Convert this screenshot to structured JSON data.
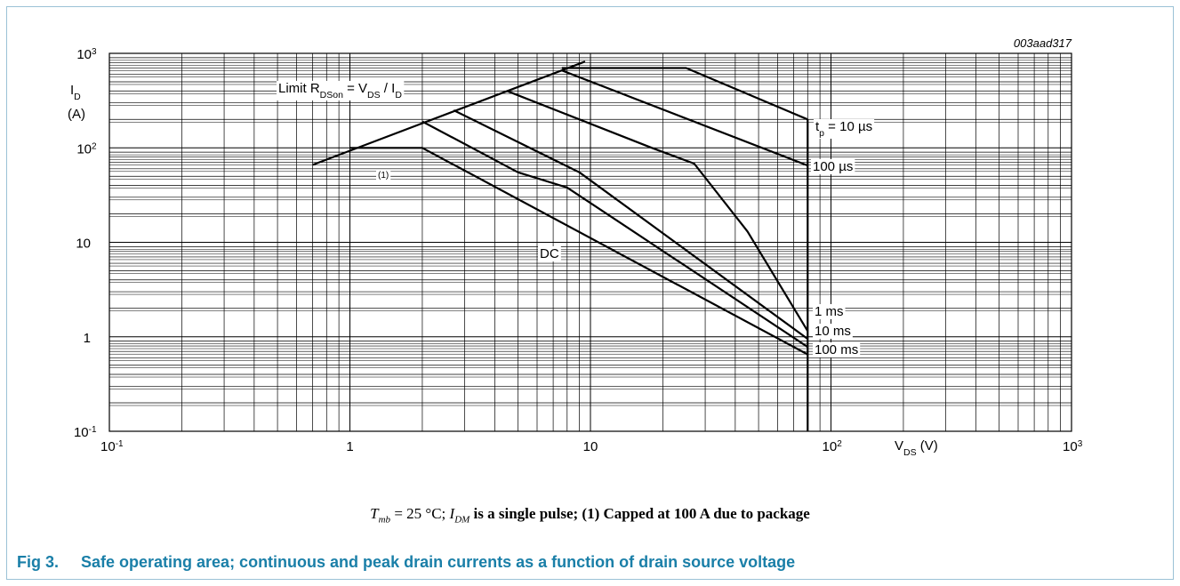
{
  "figure_id": "003aad317",
  "note": {
    "tmb_symbol": "T",
    "tmb_sub": "mb",
    "text_a": " = 25 °C; ",
    "idm_symbol": "I",
    "idm_sub": "DM",
    "text_b": " is a single pulse; (1) Capped at 100 A due to package"
  },
  "caption": {
    "number": "Fig 3.",
    "text": "Safe operating area; continuous and peak drain currents as a function of drain source voltage"
  },
  "colors": {
    "caption": "#1a7fa8",
    "frame": "#9bc2d6",
    "lines": "#000000",
    "grid": "#000000"
  },
  "chart_data": {
    "type": "line",
    "x_scale": "log",
    "y_scale": "log",
    "xlim": [
      0.1,
      1000
    ],
    "ylim": [
      0.1,
      1000
    ],
    "grid": true,
    "x_ticks": [
      {
        "value": 0.1,
        "base": "10",
        "exp": "-1"
      },
      {
        "value": 1,
        "base": "1",
        "exp": ""
      },
      {
        "value": 10,
        "base": "10",
        "exp": ""
      },
      {
        "value": 100,
        "base": "10",
        "exp": "2"
      },
      {
        "value": 1000,
        "base": "10",
        "exp": "3"
      }
    ],
    "y_ticks": [
      {
        "value": 0.1,
        "base": "10",
        "exp": "-1"
      },
      {
        "value": 1,
        "base": "1",
        "exp": ""
      },
      {
        "value": 10,
        "base": "10",
        "exp": ""
      },
      {
        "value": 100,
        "base": "10",
        "exp": "2"
      },
      {
        "value": 1000,
        "base": "10",
        "exp": "3"
      }
    ],
    "xlabel": {
      "main": "V",
      "sub": "DS",
      "unit": " (V)"
    },
    "ylabel": {
      "main": "I",
      "sub": "D",
      "unit": "(A)"
    },
    "limit_label": {
      "prefix": "Limit R",
      "sub1": "DSon",
      "mid": " = V",
      "sub2": "DS",
      "mid2": " / I",
      "sub3": "D"
    },
    "cap_label": "(1)",
    "series": [
      {
        "name": "Limit R<sub>DSon</sub> = V<sub>DS</sub> / I<sub>D</sub>",
        "points": [
          [
            0.7,
            66
          ],
          [
            9.5,
            820
          ]
        ]
      },
      {
        "name": "t_p = 10 µs",
        "points": [
          [
            7.6,
            700
          ],
          [
            25,
            700
          ],
          [
            80,
            200
          ]
        ]
      },
      {
        "name": "100 µs",
        "points": [
          [
            7.6,
            660
          ],
          [
            80,
            65
          ]
        ]
      },
      {
        "name": "1 ms",
        "points": [
          [
            4.5,
            400
          ],
          [
            18,
            100
          ],
          [
            27,
            68
          ],
          [
            45,
            13
          ],
          [
            80,
            1.15
          ]
        ]
      },
      {
        "name": "10 ms",
        "points": [
          [
            2.7,
            250
          ],
          [
            9,
            55
          ],
          [
            80,
            0.95
          ]
        ]
      },
      {
        "name": "100 ms",
        "points": [
          [
            2,
            190
          ],
          [
            5,
            55
          ],
          [
            8,
            38
          ],
          [
            80,
            0.78
          ]
        ]
      },
      {
        "name": "DC",
        "points": [
          [
            1,
            100
          ],
          [
            2,
            100
          ],
          [
            80,
            0.65
          ]
        ]
      }
    ],
    "vertical_limit": {
      "x": 80,
      "y_from": 0.1,
      "y_to": 200
    },
    "labels": [
      {
        "text_main": "t",
        "text_sub": "p",
        "text_rest": " = 10 µs",
        "for": "t_p = 10 µs"
      },
      {
        "text_main": "100 µs",
        "text_sub": "",
        "text_rest": "",
        "for": "100 µs"
      },
      {
        "text_main": "1 ms",
        "text_sub": "",
        "text_rest": "",
        "for": "1 ms"
      },
      {
        "text_main": "10 ms",
        "text_sub": "",
        "text_rest": "",
        "for": "10 ms"
      },
      {
        "text_main": "100 ms",
        "text_sub": "",
        "text_rest": "",
        "for": "100 ms"
      },
      {
        "text_main": "DC",
        "text_sub": "",
        "text_rest": "",
        "for": "DC"
      }
    ]
  }
}
